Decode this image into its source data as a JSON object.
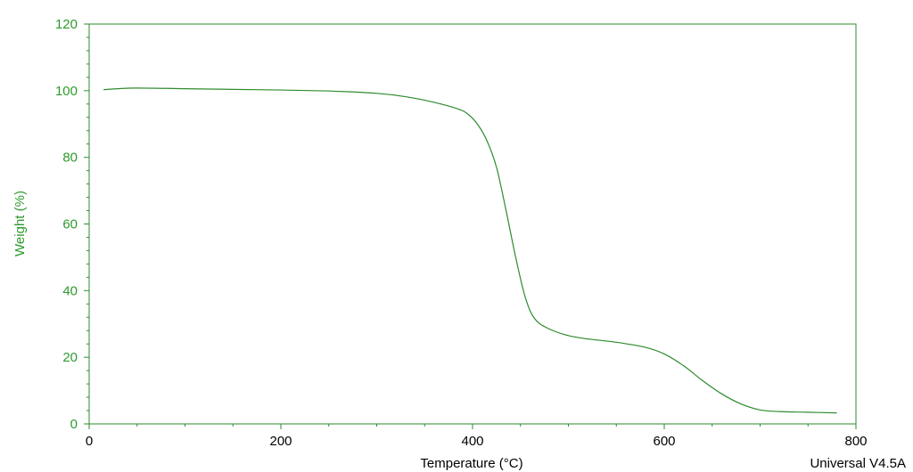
{
  "chart_data": {
    "type": "line",
    "title": "",
    "xlabel": "Temperature (°C)",
    "ylabel": "Weight (%)",
    "xlim": [
      0,
      800
    ],
    "ylim": [
      0,
      120
    ],
    "x_ticks": [
      0,
      200,
      400,
      600,
      800
    ],
    "y_ticks": [
      0,
      20,
      40,
      60,
      80,
      100,
      120
    ],
    "grid": false,
    "legend": "none",
    "colors": {
      "line": "#2e8b2e",
      "axis": "#2e8b2e",
      "y_label_text": "#2e9a2e",
      "x_label_text": "#000000"
    },
    "series": [
      {
        "values": [
          [
            15,
            100.3
          ],
          [
            30,
            100.6
          ],
          [
            50,
            100.8
          ],
          [
            100,
            100.6
          ],
          [
            150,
            100.4
          ],
          [
            200,
            100.2
          ],
          [
            250,
            99.9
          ],
          [
            300,
            99.2
          ],
          [
            330,
            98.2
          ],
          [
            360,
            96.5
          ],
          [
            385,
            94.5
          ],
          [
            395,
            93.0
          ],
          [
            405,
            90.0
          ],
          [
            415,
            85.0
          ],
          [
            425,
            77.0
          ],
          [
            435,
            64.0
          ],
          [
            445,
            50.0
          ],
          [
            455,
            38.0
          ],
          [
            465,
            31.5
          ],
          [
            480,
            28.5
          ],
          [
            500,
            26.5
          ],
          [
            520,
            25.5
          ],
          [
            550,
            24.5
          ],
          [
            580,
            23.0
          ],
          [
            600,
            21.0
          ],
          [
            620,
            17.5
          ],
          [
            640,
            13.0
          ],
          [
            660,
            9.0
          ],
          [
            680,
            6.0
          ],
          [
            700,
            4.2
          ],
          [
            720,
            3.7
          ],
          [
            750,
            3.5
          ],
          [
            780,
            3.3
          ]
        ]
      }
    ]
  },
  "footer": {
    "software_version": "Universal V4.5A"
  }
}
